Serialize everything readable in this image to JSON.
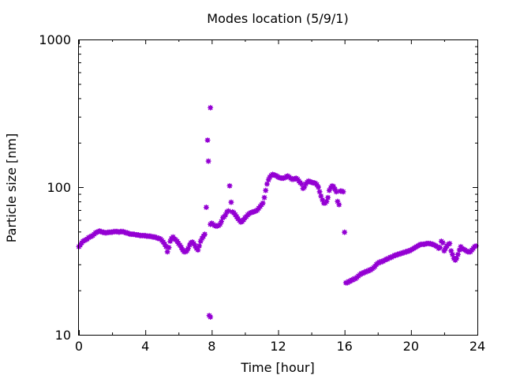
{
  "chart_data": {
    "type": "scatter",
    "title": "Modes location (5/9/1)",
    "xlabel": "Time [hour]",
    "ylabel": "Particle size [nm]",
    "xlim": [
      0,
      24
    ],
    "ylim": [
      10,
      1000
    ],
    "yscale": "log",
    "x_ticks": [
      0,
      4,
      8,
      12,
      16,
      20,
      24
    ],
    "x_tick_labels": [
      "0",
      "4",
      "8",
      "12",
      "16",
      "20",
      "24"
    ],
    "y_ticks": [
      10,
      100,
      1000
    ],
    "y_tick_labels": [
      "10",
      "100",
      "1000"
    ],
    "grid": false,
    "legend": "none",
    "marker_color": "#9400d3",
    "series": [
      {
        "points": [
          [
            0.0,
            39.5
          ],
          [
            0.08,
            40.5
          ],
          [
            0.17,
            42
          ],
          [
            0.25,
            43
          ],
          [
            0.33,
            43.5
          ],
          [
            0.42,
            44
          ],
          [
            0.5,
            44.5
          ],
          [
            0.58,
            45.5
          ],
          [
            0.67,
            46
          ],
          [
            0.75,
            46.5
          ],
          [
            0.83,
            47
          ],
          [
            0.92,
            48
          ],
          [
            1.0,
            49
          ],
          [
            1.08,
            49.5
          ],
          [
            1.17,
            50
          ],
          [
            1.25,
            50.5
          ],
          [
            1.33,
            50
          ],
          [
            1.42,
            49.5
          ],
          [
            1.5,
            49.5
          ],
          [
            1.58,
            49
          ],
          [
            1.67,
            49
          ],
          [
            1.75,
            49.5
          ],
          [
            1.83,
            49.5
          ],
          [
            1.92,
            49.5
          ],
          [
            2.0,
            49.5
          ],
          [
            2.08,
            50
          ],
          [
            2.17,
            50
          ],
          [
            2.25,
            50
          ],
          [
            2.33,
            50
          ],
          [
            2.42,
            49.5
          ],
          [
            2.5,
            50
          ],
          [
            2.58,
            50
          ],
          [
            2.67,
            50
          ],
          [
            2.75,
            49.5
          ],
          [
            2.83,
            49
          ],
          [
            2.92,
            49
          ],
          [
            3.0,
            48.5
          ],
          [
            3.08,
            48
          ],
          [
            3.17,
            48
          ],
          [
            3.25,
            48
          ],
          [
            3.33,
            48
          ],
          [
            3.42,
            47.5
          ],
          [
            3.5,
            47.5
          ],
          [
            3.58,
            47.5
          ],
          [
            3.67,
            47
          ],
          [
            3.75,
            47
          ],
          [
            3.83,
            47
          ],
          [
            3.92,
            47
          ],
          [
            4.0,
            47
          ],
          [
            4.08,
            46.5
          ],
          [
            4.17,
            46.5
          ],
          [
            4.25,
            46.5
          ],
          [
            4.33,
            46.5
          ],
          [
            4.42,
            46
          ],
          [
            4.5,
            46
          ],
          [
            4.58,
            46
          ],
          [
            4.67,
            45.5
          ],
          [
            4.75,
            45
          ],
          [
            4.83,
            45
          ],
          [
            4.92,
            44.5
          ],
          [
            5.0,
            43.5
          ],
          [
            5.08,
            42.5
          ],
          [
            5.17,
            41
          ],
          [
            5.25,
            39.5
          ],
          [
            5.33,
            36.5
          ],
          [
            5.42,
            39
          ],
          [
            5.5,
            43
          ],
          [
            5.58,
            45
          ],
          [
            5.67,
            46
          ],
          [
            5.75,
            44.5
          ],
          [
            5.83,
            44
          ],
          [
            5.92,
            43
          ],
          [
            6.0,
            41.5
          ],
          [
            6.08,
            40.5
          ],
          [
            6.17,
            39
          ],
          [
            6.25,
            37.5
          ],
          [
            6.33,
            36.5
          ],
          [
            6.42,
            36.5
          ],
          [
            6.5,
            37
          ],
          [
            6.58,
            38.5
          ],
          [
            6.67,
            40.5
          ],
          [
            6.75,
            42
          ],
          [
            6.83,
            42.5
          ],
          [
            6.92,
            41.5
          ],
          [
            7.0,
            40
          ],
          [
            7.08,
            38.5
          ],
          [
            7.17,
            37.5
          ],
          [
            7.25,
            40
          ],
          [
            7.33,
            43
          ],
          [
            7.42,
            45
          ],
          [
            7.5,
            46.5
          ],
          [
            7.58,
            48
          ],
          [
            7.67,
            73
          ],
          [
            7.75,
            208
          ],
          [
            7.8,
            150
          ],
          [
            7.85,
            13.5
          ],
          [
            7.92,
            13.2
          ],
          [
            7.92,
            56
          ],
          [
            7.92,
            345
          ],
          [
            8.0,
            57
          ],
          [
            8.08,
            56
          ],
          [
            8.17,
            55
          ],
          [
            8.25,
            54.5
          ],
          [
            8.33,
            54.5
          ],
          [
            8.42,
            55
          ],
          [
            8.5,
            56
          ],
          [
            8.58,
            58.5
          ],
          [
            8.67,
            62
          ],
          [
            8.75,
            63
          ],
          [
            8.83,
            65
          ],
          [
            8.92,
            68
          ],
          [
            9.0,
            69
          ],
          [
            9.08,
            102
          ],
          [
            9.17,
            79
          ],
          [
            9.25,
            68
          ],
          [
            9.33,
            67
          ],
          [
            9.42,
            65
          ],
          [
            9.5,
            63
          ],
          [
            9.58,
            61
          ],
          [
            9.67,
            59.5
          ],
          [
            9.75,
            58
          ],
          [
            9.83,
            58.5
          ],
          [
            9.92,
            60
          ],
          [
            10.0,
            62
          ],
          [
            10.08,
            63
          ],
          [
            10.17,
            65
          ],
          [
            10.25,
            66
          ],
          [
            10.33,
            67
          ],
          [
            10.42,
            67.5
          ],
          [
            10.5,
            68
          ],
          [
            10.58,
            68.5
          ],
          [
            10.67,
            69
          ],
          [
            10.75,
            70
          ],
          [
            10.83,
            72
          ],
          [
            10.92,
            74
          ],
          [
            11.0,
            76
          ],
          [
            11.08,
            78
          ],
          [
            11.17,
            85
          ],
          [
            11.25,
            95
          ],
          [
            11.33,
            105
          ],
          [
            11.42,
            112
          ],
          [
            11.5,
            117
          ],
          [
            11.58,
            120
          ],
          [
            11.67,
            122
          ],
          [
            11.75,
            121
          ],
          [
            11.83,
            120
          ],
          [
            11.92,
            119
          ],
          [
            12.0,
            117
          ],
          [
            12.08,
            116
          ],
          [
            12.17,
            115
          ],
          [
            12.25,
            115
          ],
          [
            12.33,
            115
          ],
          [
            12.42,
            116
          ],
          [
            12.5,
            118
          ],
          [
            12.58,
            119
          ],
          [
            12.67,
            117
          ],
          [
            12.75,
            115
          ],
          [
            12.83,
            113
          ],
          [
            12.92,
            113
          ],
          [
            13.0,
            114
          ],
          [
            13.08,
            115
          ],
          [
            13.17,
            113
          ],
          [
            13.25,
            110
          ],
          [
            13.33,
            107
          ],
          [
            13.42,
            105
          ],
          [
            13.5,
            98
          ],
          [
            13.58,
            100
          ],
          [
            13.67,
            105
          ],
          [
            13.75,
            108
          ],
          [
            13.83,
            110
          ],
          [
            13.92,
            109
          ],
          [
            14.0,
            108
          ],
          [
            14.08,
            107
          ],
          [
            14.17,
            107
          ],
          [
            14.25,
            106
          ],
          [
            14.33,
            104
          ],
          [
            14.42,
            100
          ],
          [
            14.5,
            93
          ],
          [
            14.58,
            87
          ],
          [
            14.67,
            82
          ],
          [
            14.75,
            78
          ],
          [
            14.83,
            78
          ],
          [
            14.92,
            80
          ],
          [
            15.0,
            85
          ],
          [
            15.08,
            95
          ],
          [
            15.17,
            99
          ],
          [
            15.25,
            102
          ],
          [
            15.33,
            101
          ],
          [
            15.42,
            97
          ],
          [
            15.5,
            93
          ],
          [
            15.58,
            80
          ],
          [
            15.67,
            76
          ],
          [
            15.75,
            94
          ],
          [
            15.83,
            94
          ],
          [
            15.92,
            93
          ],
          [
            16.0,
            49.5
          ],
          [
            16.08,
            22.5
          ],
          [
            16.17,
            22.5
          ],
          [
            16.25,
            23
          ],
          [
            16.33,
            23
          ],
          [
            16.42,
            23.5
          ],
          [
            16.5,
            23.5
          ],
          [
            16.58,
            24
          ],
          [
            16.67,
            24
          ],
          [
            16.75,
            24.5
          ],
          [
            16.83,
            25
          ],
          [
            16.92,
            25.5
          ],
          [
            17.0,
            26
          ],
          [
            17.08,
            26
          ],
          [
            17.17,
            26.5
          ],
          [
            17.25,
            26.5
          ],
          [
            17.33,
            27
          ],
          [
            17.42,
            27
          ],
          [
            17.5,
            27.5
          ],
          [
            17.58,
            27.5
          ],
          [
            17.67,
            28
          ],
          [
            17.75,
            28.5
          ],
          [
            17.83,
            29
          ],
          [
            17.92,
            30
          ],
          [
            18.0,
            30.5
          ],
          [
            18.08,
            31
          ],
          [
            18.17,
            31
          ],
          [
            18.25,
            31.5
          ],
          [
            18.33,
            31.5
          ],
          [
            18.42,
            32
          ],
          [
            18.5,
            32.5
          ],
          [
            18.58,
            32.5
          ],
          [
            18.67,
            33
          ],
          [
            18.75,
            33.5
          ],
          [
            18.83,
            33.5
          ],
          [
            18.92,
            34
          ],
          [
            19.0,
            34.5
          ],
          [
            19.08,
            34.5
          ],
          [
            19.17,
            35
          ],
          [
            19.25,
            35
          ],
          [
            19.33,
            35.5
          ],
          [
            19.42,
            35.5
          ],
          [
            19.5,
            36
          ],
          [
            19.58,
            36
          ],
          [
            19.67,
            36.5
          ],
          [
            19.75,
            36.5
          ],
          [
            19.83,
            37
          ],
          [
            19.92,
            37
          ],
          [
            20.0,
            37.5
          ],
          [
            20.08,
            38
          ],
          [
            20.17,
            38.5
          ],
          [
            20.25,
            39
          ],
          [
            20.33,
            39.5
          ],
          [
            20.42,
            40
          ],
          [
            20.5,
            40.5
          ],
          [
            20.58,
            41
          ],
          [
            20.67,
            41
          ],
          [
            20.75,
            41
          ],
          [
            20.83,
            41
          ],
          [
            20.92,
            41.5
          ],
          [
            21.0,
            41.5
          ],
          [
            21.08,
            41.5
          ],
          [
            21.17,
            41.5
          ],
          [
            21.25,
            41
          ],
          [
            21.33,
            41
          ],
          [
            21.42,
            40.5
          ],
          [
            21.5,
            40
          ],
          [
            21.58,
            39.5
          ],
          [
            21.67,
            38.5
          ],
          [
            21.75,
            39
          ],
          [
            21.83,
            43
          ],
          [
            21.92,
            42
          ],
          [
            22.0,
            37
          ],
          [
            22.08,
            38.5
          ],
          [
            22.17,
            40
          ],
          [
            22.25,
            41
          ],
          [
            22.33,
            41.5
          ],
          [
            22.42,
            37
          ],
          [
            22.5,
            35
          ],
          [
            22.58,
            33
          ],
          [
            22.67,
            32
          ],
          [
            22.75,
            33
          ],
          [
            22.83,
            35
          ],
          [
            22.92,
            37.5
          ],
          [
            23.0,
            39.5
          ],
          [
            23.08,
            38.5
          ],
          [
            23.17,
            38
          ],
          [
            23.25,
            37.5
          ],
          [
            23.33,
            37
          ],
          [
            23.42,
            36.5
          ],
          [
            23.5,
            36.5
          ],
          [
            23.58,
            36.5
          ],
          [
            23.67,
            37.5
          ],
          [
            23.75,
            38.5
          ],
          [
            23.83,
            39.5
          ],
          [
            23.92,
            40
          ]
        ]
      }
    ]
  }
}
